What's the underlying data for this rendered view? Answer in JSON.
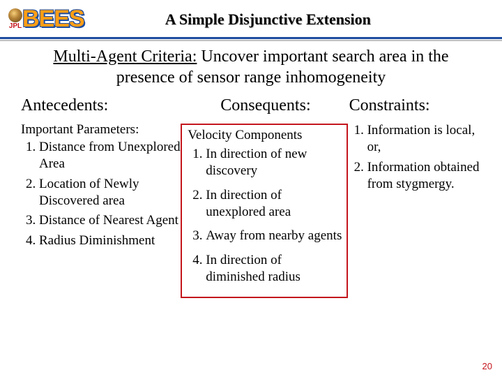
{
  "logo": {
    "jpl": "JPL",
    "bees": "BEES"
  },
  "title": "A Simple Disjunctive Extension",
  "subtitle_lead": "Multi-Agent Criteria:",
  "subtitle_rest": " Uncover important search area in the presence of sensor range inhomogeneity",
  "antecedents": {
    "heading": "Antecedents:",
    "label": "Important Parameters:",
    "items": [
      "Distance from Unexplored Area",
      "Location of Newly Discovered area",
      "Distance of Nearest Agent",
      "Radius Diminishment"
    ]
  },
  "consequents": {
    "heading": "Consequents:",
    "label": "Velocity Components",
    "items": [
      "In direction of new discovery",
      "In direction of unexplored area",
      "Away from nearby agents",
      "In direction of diminished radius"
    ]
  },
  "constraints": {
    "heading": "Constraints:",
    "items": [
      "Information is local, or,",
      "Information obtained from stygmergy."
    ]
  },
  "page_number": "20",
  "colors": {
    "divider": "#1d4da0",
    "box_border": "#c4161c",
    "bees_fill": "#ff9e16",
    "bees_outline": "#1d4da0",
    "page_num": "#c4161c"
  }
}
